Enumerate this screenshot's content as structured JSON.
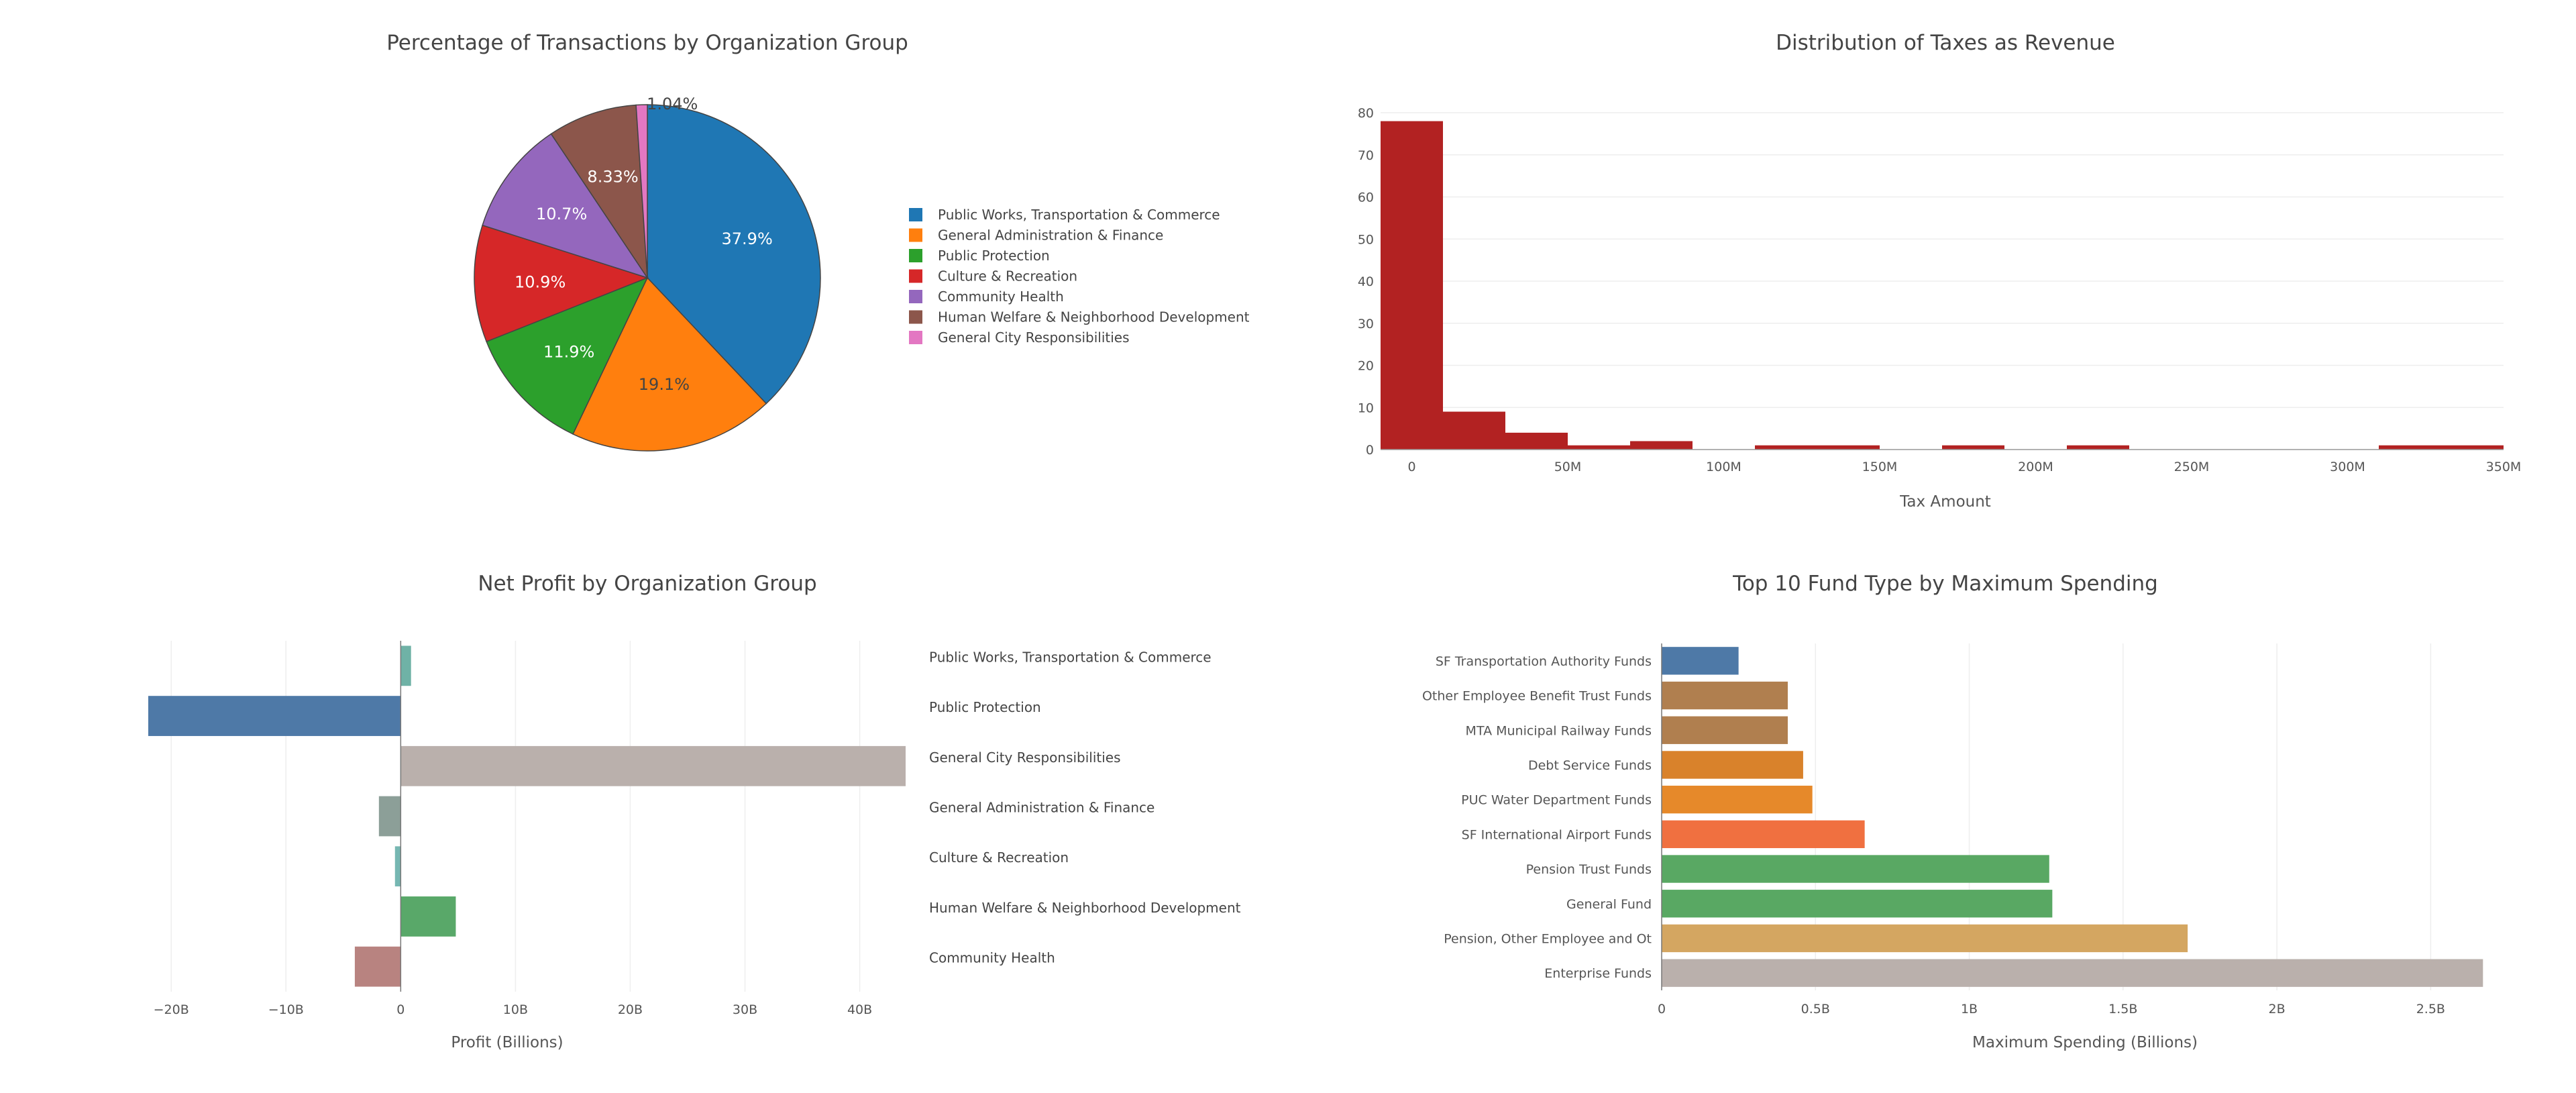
{
  "chart_data": [
    {
      "id": "pie",
      "type": "pie",
      "title": "Percentage of Transactions by Organization Group",
      "slices": [
        {
          "label": "Public Works, Transportation & Commerce",
          "value": 37.9,
          "text": "37.9%",
          "color": "#1f77b4"
        },
        {
          "label": "General Administration & Finance",
          "value": 19.1,
          "text": "19.1%",
          "color": "#ff7f0e"
        },
        {
          "label": "Public Protection",
          "value": 11.9,
          "text": "11.9%",
          "color": "#2ca02c"
        },
        {
          "label": "Culture & Recreation",
          "value": 10.9,
          "text": "10.9%",
          "color": "#d62728"
        },
        {
          "label": "Community Health",
          "value": 10.7,
          "text": "10.7%",
          "color": "#9467bd"
        },
        {
          "label": "Human Welfare & Neighborhood Development",
          "value": 8.33,
          "text": "8.33%",
          "color": "#8c564b"
        },
        {
          "label": "General City Responsibilities",
          "value": 1.04,
          "text": "1.04%",
          "color": "#e377c2"
        }
      ],
      "legend": "right"
    },
    {
      "id": "hist",
      "type": "bar",
      "title": "Distribution of Taxes as Revenue",
      "xlabel": "Tax Amount",
      "ylabel": "",
      "bin_width": 20,
      "bins": [
        {
          "start": -10,
          "count": 78
        },
        {
          "start": 10,
          "count": 9
        },
        {
          "start": 30,
          "count": 4
        },
        {
          "start": 50,
          "count": 1
        },
        {
          "start": 70,
          "count": 2
        },
        {
          "start": 90,
          "count": 0
        },
        {
          "start": 110,
          "count": 1
        },
        {
          "start": 130,
          "count": 1
        },
        {
          "start": 150,
          "count": 0
        },
        {
          "start": 170,
          "count": 1
        },
        {
          "start": 190,
          "count": 0
        },
        {
          "start": 210,
          "count": 1
        },
        {
          "start": 230,
          "count": 0
        },
        {
          "start": 250,
          "count": 0
        },
        {
          "start": 270,
          "count": 0
        },
        {
          "start": 290,
          "count": 0
        },
        {
          "start": 310,
          "count": 1
        },
        {
          "start": 330,
          "count": 1
        }
      ],
      "xlim": [
        -10,
        350
      ],
      "ylim": [
        0,
        80
      ],
      "xticks": [
        0,
        50,
        100,
        150,
        200,
        250,
        300,
        350
      ],
      "xtick_labels": [
        "0",
        "50M",
        "100M",
        "150M",
        "200M",
        "250M",
        "300M",
        "350M"
      ],
      "yticks": [
        0,
        10,
        20,
        30,
        40,
        50,
        60,
        70,
        80
      ],
      "ytick_labels": [
        "0",
        "10",
        "20",
        "30",
        "40",
        "50",
        "60",
        "70",
        "80"
      ],
      "color": "#b22222"
    },
    {
      "id": "profit",
      "type": "bar",
      "orientation": "horizontal",
      "title": "Net Profit by Organization Group",
      "xlabel": "Profit (Billions)",
      "xlim": [
        -22,
        44
      ],
      "xticks": [
        -20,
        -10,
        0,
        10,
        20,
        30,
        40
      ],
      "xtick_labels": [
        "−20B",
        "−10B",
        "0",
        "10B",
        "20B",
        "30B",
        "40B"
      ],
      "bars": [
        {
          "label": "Public Works, Transportation & Commerce",
          "value": 0.9,
          "color": "#6fb2a6"
        },
        {
          "label": "Public Protection",
          "value": -22,
          "color": "#4e79a7"
        },
        {
          "label": "General City Responsibilities",
          "value": 44,
          "color": "#bab0ac"
        },
        {
          "label": "General Administration & Finance",
          "value": -1.9,
          "color": "#8c9f98"
        },
        {
          "label": "Culture & Recreation",
          "value": -0.5,
          "color": "#76b7b2"
        },
        {
          "label": "Human Welfare & Neighborhood Development",
          "value": 4.8,
          "color": "#59a869"
        },
        {
          "label": "Community Health",
          "value": -4,
          "color": "#b88380"
        }
      ]
    },
    {
      "id": "funds",
      "type": "bar",
      "orientation": "horizontal",
      "title": "Top 10 Fund Type by Maximum Spending",
      "xlabel": "Maximum Spending (Billions)",
      "xlim": [
        0,
        2.75
      ],
      "xticks": [
        0,
        0.5,
        1,
        1.5,
        2,
        2.5
      ],
      "xtick_labels": [
        "0",
        "0.5B",
        "1B",
        "1.5B",
        "2B",
        "2.5B"
      ],
      "bars": [
        {
          "label": "SF Transportation Authority Funds",
          "value": 0.25,
          "color": "#4e79a7"
        },
        {
          "label": "Other Employee Benefit Trust Funds",
          "value": 0.41,
          "color": "#b07f4f"
        },
        {
          "label": "MTA Municipal Railway Funds",
          "value": 0.41,
          "color": "#b07f4f"
        },
        {
          "label": "Debt Service Funds",
          "value": 0.46,
          "color": "#d9822b"
        },
        {
          "label": "PUC Water Department Funds",
          "value": 0.49,
          "color": "#e6892a"
        },
        {
          "label": "SF International Airport Funds",
          "value": 0.66,
          "color": "#f07040"
        },
        {
          "label": "Pension Trust Funds",
          "value": 1.26,
          "color": "#59a863"
        },
        {
          "label": "General Fund",
          "value": 1.27,
          "color": "#59a863"
        },
        {
          "label": "Pension, Other Employee and Ot",
          "value": 1.71,
          "color": "#d4a661"
        },
        {
          "label": "Enterprise Funds",
          "value": 2.67,
          "color": "#bab0ac"
        }
      ]
    }
  ]
}
